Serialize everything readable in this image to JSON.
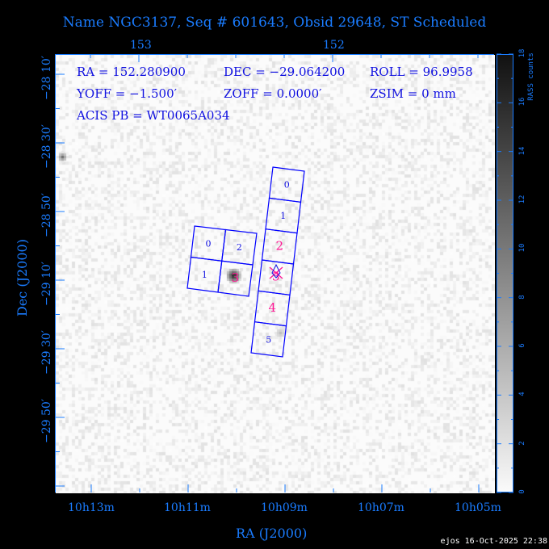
{
  "title": "Name NGC3137, Seq # 601643, Obsid 29648, ST Scheduled",
  "info": {
    "ra": "RA = 152.280900",
    "dec": "DEC = −29.064200",
    "roll": "ROLL = 96.9958",
    "yoff": "YOFF =  −1.500′",
    "zoff": "ZOFF =  0.0000′",
    "zsim": "ZSIM = 0 mm",
    "acis_pb": "ACIS PB = WT0065A034"
  },
  "top_axis": {
    "ticks": [
      "153",
      "152"
    ]
  },
  "bottom_axis": {
    "ticks": [
      "10h13m",
      "10h11m",
      "10h09m",
      "10h07m",
      "10h05m"
    ],
    "label": "RA (J2000)"
  },
  "left_axis": {
    "ticks": [
      "−28 10′",
      "−28 30′",
      "−28 50′",
      "−29 10′",
      "−29 30′",
      "−29 50′"
    ],
    "label": "Dec (J2000)"
  },
  "colorbar": {
    "label": "RASS counts",
    "ticks": [
      "0",
      "2",
      "4",
      "6",
      "8",
      "10",
      "12",
      "14",
      "16",
      "18"
    ],
    "range": [
      0,
      18
    ]
  },
  "chips": {
    "acis_i": [
      "0",
      "2",
      "1",
      "3"
    ],
    "acis_s": [
      "0",
      "1",
      "2",
      "3",
      "4",
      "5"
    ],
    "active_color": "#ff1493",
    "inactive_color": "#1010e0",
    "outline_color": "#0000ff"
  },
  "stamp": "ejos 16-Oct-2025 22:38"
}
